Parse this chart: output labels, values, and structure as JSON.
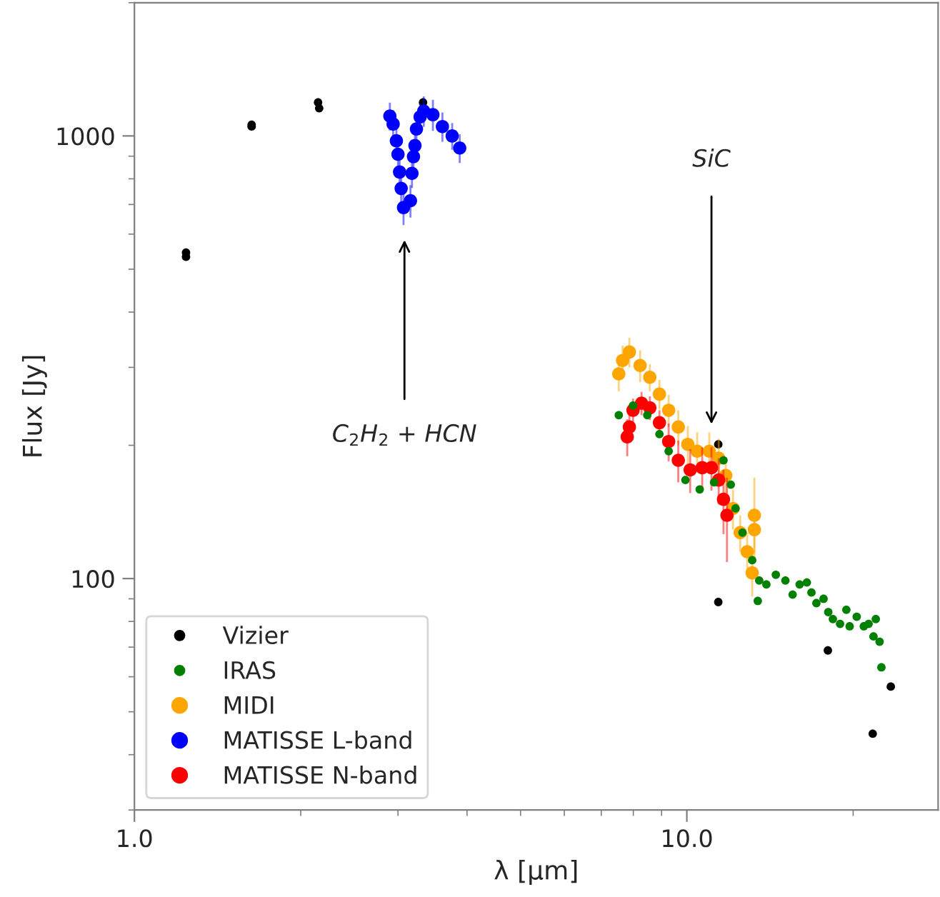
{
  "chart_data": {
    "type": "scatter",
    "xlabel": "λ [μm]",
    "ylabel": "Flux [Jy]",
    "log": "xy",
    "xlim": [
      1.0,
      28.5
    ],
    "ylim": [
      30,
      2000
    ],
    "xticks": [
      {
        "value": 1,
        "label": "1.0"
      },
      {
        "value": 10,
        "label": "10.0"
      }
    ],
    "yticks": [
      100,
      1000
    ],
    "legend": "bottom left",
    "marker": "circle",
    "annotations": [
      "C$_{2}$H$_{2}$ + HCN",
      "SiC"
    ],
    "series": [
      {
        "name": "Vizier",
        "color": "#000000",
        "x": [
          1.24,
          1.24,
          1.63,
          1.63,
          2.15,
          2.16,
          3.33,
          11.4,
          11.4,
          18.0,
          21.7,
          23.4
        ],
        "values": [
          533,
          545,
          1050,
          1060,
          1190,
          1155,
          1190,
          201,
          88.5,
          68.8,
          44.6,
          57
        ]
      },
      {
        "name": "IRAS",
        "color": "#008000",
        "x": [
          7.53,
          7.99,
          8.48,
          8.92,
          9.27,
          9.94,
          10.55,
          11.2,
          11.65,
          12.01,
          12.25,
          12.61,
          13.13,
          13.44,
          13.52,
          13.93,
          14.49,
          15.08,
          15.54,
          16.0,
          16.49,
          16.81,
          17.16,
          17.68,
          18.03,
          18.38,
          18.94,
          19.44,
          19.71,
          20.3,
          20.91,
          21.33,
          21.77,
          21.98,
          22.33,
          22.5
        ],
        "values": [
          234,
          246,
          234,
          212,
          194,
          167,
          159,
          165,
          185,
          163,
          144,
          127,
          110,
          89,
          99,
          97,
          102,
          99,
          92,
          97,
          98,
          93,
          88,
          90,
          84,
          81,
          79,
          85,
          78,
          82,
          78,
          79,
          74,
          81,
          72,
          63
        ]
      },
      {
        "name": "MIDI",
        "color": "#ffa500",
        "x": [
          7.53,
          7.65,
          7.87,
          8.23,
          8.57,
          8.92,
          9.27,
          9.65,
          10.04,
          10.44,
          10.98,
          11.42,
          11.76,
          12.12,
          12.49,
          12.86,
          13.13,
          13.25,
          13.25
        ],
        "values": [
          290,
          311,
          325,
          303,
          285,
          261,
          240,
          220,
          201,
          194,
          194,
          187,
          171,
          144,
          127,
          115,
          103,
          139,
          129
        ],
        "errors": [
          25,
          25,
          25,
          25,
          20,
          20,
          20,
          20,
          20,
          20,
          20,
          20,
          15,
          15,
          12,
          12,
          12,
          30,
          15
        ]
      },
      {
        "name": "MATISSE L-band",
        "color": "#0000ff",
        "x": [
          2.9,
          2.94,
          2.98,
          3.0,
          3.02,
          3.04,
          3.07,
          3.16,
          3.18,
          3.2,
          3.22,
          3.24,
          3.29,
          3.34,
          3.47,
          3.61,
          3.76,
          3.88
        ],
        "values": [
          1109,
          1064,
          975,
          909,
          829,
          761,
          689,
          714,
          823,
          898,
          951,
          1037,
          1104,
          1138,
          1117,
          1050,
          1000,
          939
        ],
        "errors": [
          80,
          80,
          70,
          70,
          60,
          60,
          60,
          60,
          60,
          70,
          70,
          80,
          80,
          90,
          90,
          80,
          70,
          70
        ]
      },
      {
        "name": "MATISSE N-band",
        "color": "#ff0000",
        "x": [
          7.8,
          7.87,
          7.99,
          8.28,
          8.57,
          8.92,
          9.27,
          9.65,
          10.14,
          10.66,
          11.08,
          11.42,
          11.65,
          11.82
        ],
        "values": [
          209,
          220,
          240,
          249,
          243,
          225,
          204,
          185,
          176,
          178,
          178,
          167,
          151,
          139
        ],
        "errors": [
          20,
          15,
          15,
          15,
          15,
          15,
          20,
          20,
          20,
          20,
          20,
          20,
          25,
          30
        ]
      }
    ]
  }
}
